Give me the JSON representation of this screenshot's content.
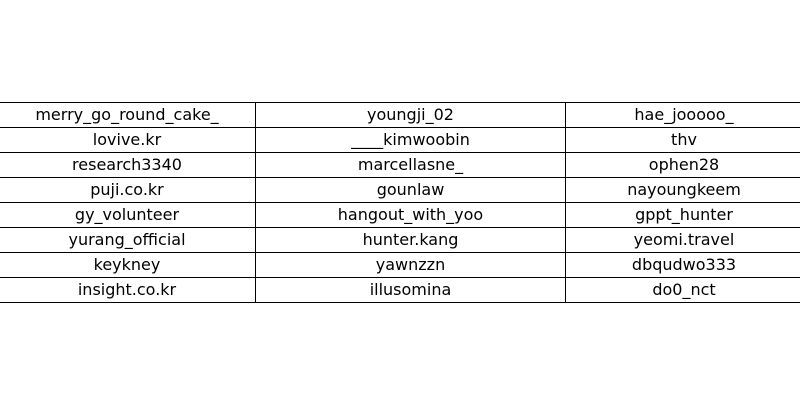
{
  "chart_data": {
    "type": "table",
    "columns": 3,
    "rows": [
      [
        "merry_go_round_cake_",
        "youngji_02",
        "hae_jooooo_"
      ],
      [
        "lovive.kr",
        "____kimwoobin",
        "thv"
      ],
      [
        "research3340",
        "marcellasne_",
        "ophen28"
      ],
      [
        "puji.co.kr",
        "gounlaw",
        "nayoungkeem"
      ],
      [
        "gy_volunteer",
        "hangout_with_yoo",
        "gppt_hunter"
      ],
      [
        "yurang_official",
        "hunter.kang",
        "yeomi.travel"
      ],
      [
        "keykney",
        "yawnzzn",
        "dbqudwo333"
      ],
      [
        "insight.co.kr",
        "illusomina",
        "do0_nct"
      ]
    ]
  }
}
